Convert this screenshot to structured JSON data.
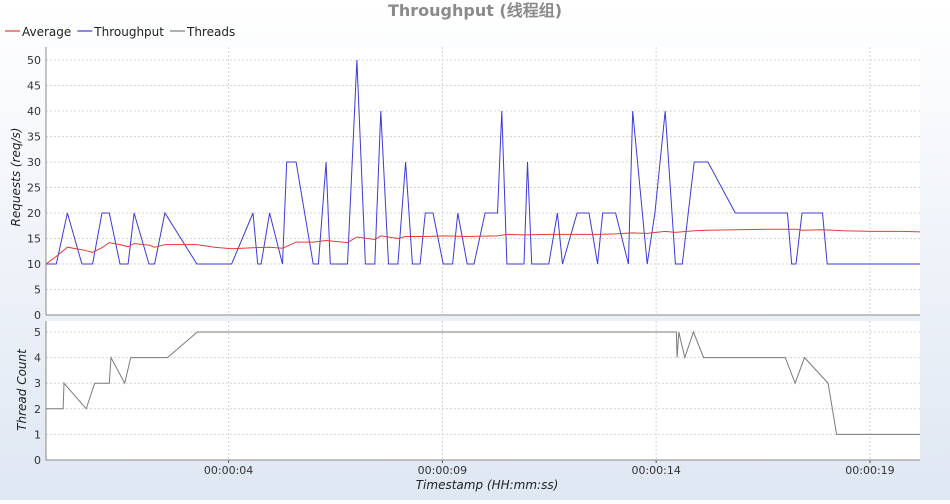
{
  "chart_data": [
    {
      "type": "line",
      "title": "Throughput (线程组)",
      "ylabel": "Requests (req/s)",
      "ylim": [
        0,
        50
      ],
      "y_ticks": [
        0,
        5,
        10,
        15,
        20,
        25,
        30,
        35,
        40,
        45,
        50
      ],
      "legend": {
        "placement": "top-left",
        "entries": [
          "Average",
          "Throughput",
          "Threads"
        ]
      },
      "grid": true,
      "x_range_seconds": [
        -0.34,
        20.1
      ],
      "series": [
        {
          "name": "Throughput",
          "color": "#3b3bd9",
          "points": [
            [
              -0.34,
              10
            ],
            [
              -0.1,
              10
            ],
            [
              0.16,
              20
            ],
            [
              0.5,
              10
            ],
            [
              0.75,
              10
            ],
            [
              0.97,
              20
            ],
            [
              1.14,
              20
            ],
            [
              1.39,
              10
            ],
            [
              1.58,
              10
            ],
            [
              1.72,
              20
            ],
            [
              2.07,
              10
            ],
            [
              2.2,
              10
            ],
            [
              2.44,
              20
            ],
            [
              3.19,
              10
            ],
            [
              4.0,
              10
            ],
            [
              4.5,
              20
            ],
            [
              4.61,
              10
            ],
            [
              4.69,
              10
            ],
            [
              4.89,
              20
            ],
            [
              5.19,
              10
            ],
            [
              5.29,
              30
            ],
            [
              5.51,
              30
            ],
            [
              5.91,
              10
            ],
            [
              6.03,
              10
            ],
            [
              6.21,
              30
            ],
            [
              6.31,
              10
            ],
            [
              6.71,
              10
            ],
            [
              6.93,
              50
            ],
            [
              7.13,
              10
            ],
            [
              7.35,
              10
            ],
            [
              7.49,
              40
            ],
            [
              7.67,
              10
            ],
            [
              7.89,
              10
            ],
            [
              8.07,
              30
            ],
            [
              8.23,
              10
            ],
            [
              8.41,
              10
            ],
            [
              8.53,
              20
            ],
            [
              8.71,
              20
            ],
            [
              8.95,
              10
            ],
            [
              9.17,
              10
            ],
            [
              9.29,
              20
            ],
            [
              9.51,
              10
            ],
            [
              9.67,
              10
            ],
            [
              9.93,
              20
            ],
            [
              10.22,
              20
            ],
            [
              10.32,
              40
            ],
            [
              10.44,
              10
            ],
            [
              10.84,
              10
            ],
            [
              10.92,
              30
            ],
            [
              11.02,
              10
            ],
            [
              11.42,
              10
            ],
            [
              11.62,
              20
            ],
            [
              11.74,
              10
            ],
            [
              12.08,
              20
            ],
            [
              12.36,
              20
            ],
            [
              12.56,
              10
            ],
            [
              12.68,
              20
            ],
            [
              12.98,
              20
            ],
            [
              13.28,
              10
            ],
            [
              13.38,
              40
            ],
            [
              13.72,
              10
            ],
            [
              13.9,
              20
            ],
            [
              14.14,
              40
            ],
            [
              14.38,
              10
            ],
            [
              14.54,
              10
            ],
            [
              14.82,
              30
            ],
            [
              15.14,
              30
            ],
            [
              15.78,
              20
            ],
            [
              17.0,
              20
            ],
            [
              17.1,
              10
            ],
            [
              17.2,
              10
            ],
            [
              17.34,
              20
            ],
            [
              17.82,
              20
            ],
            [
              17.93,
              10
            ],
            [
              20.1,
              10
            ]
          ]
        },
        {
          "name": "Average",
          "color": "#e83a3a",
          "points": [
            [
              -0.34,
              10
            ],
            [
              -0.1,
              11.5
            ],
            [
              0.16,
              13.3
            ],
            [
              0.5,
              12.8
            ],
            [
              0.75,
              12.3
            ],
            [
              0.97,
              13.2
            ],
            [
              1.14,
              14.2
            ],
            [
              1.39,
              13.8
            ],
            [
              1.58,
              13.4
            ],
            [
              1.72,
              14.0
            ],
            [
              2.07,
              13.7
            ],
            [
              2.2,
              13.3
            ],
            [
              2.44,
              13.8
            ],
            [
              3.19,
              13.8
            ],
            [
              3.6,
              13.3
            ],
            [
              4.0,
              13.0
            ],
            [
              4.5,
              13.2
            ],
            [
              4.89,
              13.3
            ],
            [
              5.19,
              13.1
            ],
            [
              5.51,
              14.3
            ],
            [
              5.91,
              14.3
            ],
            [
              6.21,
              14.6
            ],
            [
              6.71,
              14.2
            ],
            [
              6.93,
              15.3
            ],
            [
              7.35,
              14.8
            ],
            [
              7.49,
              15.5
            ],
            [
              7.89,
              15.0
            ],
            [
              8.07,
              15.4
            ],
            [
              8.53,
              15.4
            ],
            [
              9.0,
              15.5
            ],
            [
              9.5,
              15.4
            ],
            [
              10.22,
              15.5
            ],
            [
              10.44,
              15.8
            ],
            [
              10.84,
              15.7
            ],
            [
              11.42,
              15.8
            ],
            [
              12.08,
              15.8
            ],
            [
              12.56,
              15.8
            ],
            [
              12.98,
              15.9
            ],
            [
              13.38,
              16.1
            ],
            [
              13.72,
              16.0
            ],
            [
              14.14,
              16.4
            ],
            [
              14.38,
              16.2
            ],
            [
              14.82,
              16.5
            ],
            [
              15.14,
              16.6
            ],
            [
              15.78,
              16.7
            ],
            [
              16.5,
              16.8
            ],
            [
              17.2,
              16.8
            ],
            [
              17.34,
              16.6
            ],
            [
              17.82,
              16.7
            ],
            [
              18.3,
              16.5
            ],
            [
              19.0,
              16.4
            ],
            [
              19.7,
              16.4
            ],
            [
              20.1,
              16.3
            ]
          ]
        }
      ]
    },
    {
      "type": "line",
      "ylabel": "Thread Count",
      "xlabel": "Timestamp (HH:mm:ss)",
      "ylim": [
        0,
        5
      ],
      "y_ticks": [
        0,
        1,
        2,
        3,
        4,
        5
      ],
      "x_ticks": [
        {
          "t": 3.93,
          "label": "00:00:04"
        },
        {
          "t": 8.93,
          "label": "00:00:09"
        },
        {
          "t": 13.93,
          "label": "00:00:14"
        },
        {
          "t": 18.93,
          "label": "00:00:19"
        }
      ],
      "grid": true,
      "x_range_seconds": [
        -0.34,
        20.1
      ],
      "series": [
        {
          "name": "Threads",
          "color": "#7a7a7a",
          "points": [
            [
              -0.34,
              2
            ],
            [
              0.06,
              2
            ],
            [
              0.08,
              3
            ],
            [
              0.6,
              2
            ],
            [
              0.8,
              3
            ],
            [
              1.14,
              3
            ],
            [
              1.18,
              4
            ],
            [
              1.5,
              3
            ],
            [
              1.64,
              4
            ],
            [
              2.5,
              4
            ],
            [
              3.2,
              5
            ],
            [
              14.4,
              5
            ],
            [
              14.42,
              4
            ],
            [
              14.46,
              5
            ],
            [
              14.6,
              4
            ],
            [
              14.8,
              5
            ],
            [
              15.04,
              4
            ],
            [
              16.95,
              4
            ],
            [
              17.18,
              3
            ],
            [
              17.4,
              4
            ],
            [
              17.95,
              3
            ],
            [
              18.15,
              1
            ],
            [
              20.1,
              1
            ]
          ]
        }
      ]
    }
  ]
}
